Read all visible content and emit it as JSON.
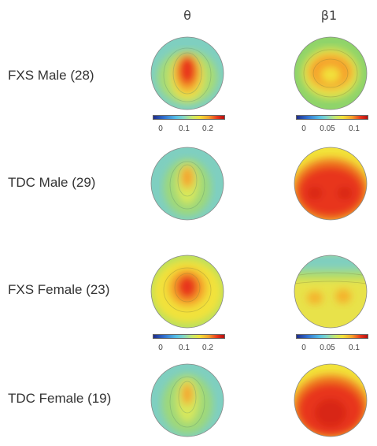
{
  "columns": {
    "theta": "θ",
    "beta1": "β1"
  },
  "rows": [
    {
      "label": "FXS Male (28)"
    },
    {
      "label": "TDC Male (29)"
    },
    {
      "label": "FXS Female (23)"
    },
    {
      "label": "TDC Female (19)"
    }
  ],
  "colorbars": [
    {
      "ticks": [
        "0",
        "0.1",
        "0.2"
      ]
    },
    {
      "ticks": [
        "0",
        "0.05",
        "0.1"
      ]
    },
    {
      "ticks": [
        "0",
        "0.1",
        "0.2"
      ]
    },
    {
      "ticks": [
        "0",
        "0.05",
        "0.1"
      ]
    }
  ],
  "colors": {
    "low": "#1f2d8a",
    "cyan": "#55c0e8",
    "green": "#8fd46a",
    "yellow": "#f2e23a",
    "orange": "#f5a22a",
    "red": "#e8351c"
  }
}
